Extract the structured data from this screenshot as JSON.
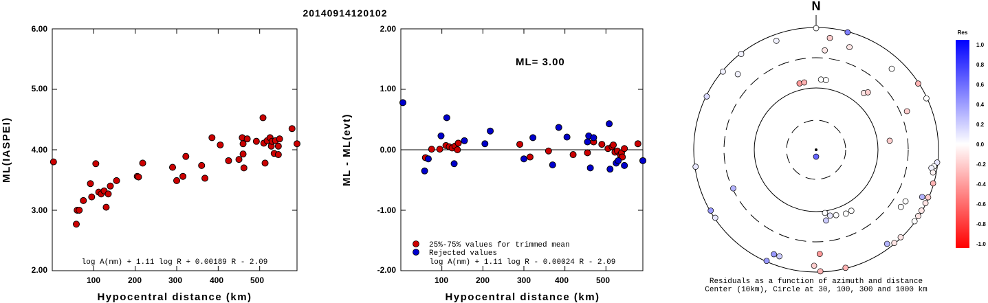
{
  "title": "20140914120102",
  "colors": {
    "accepted": "#cc0000",
    "rejected": "#0000cc",
    "edge": "#000000"
  },
  "chart_data": [
    {
      "type": "scatter",
      "name": "magnitude-vs-distance",
      "xlabel": "Hypocentral distance (km)",
      "ylabel": "ML(IASPEI)",
      "xlim": [
        0,
        590
      ],
      "ylim": [
        2.0,
        6.0
      ],
      "xticks": [
        "100",
        "200",
        "300",
        "400",
        "500"
      ],
      "yticks": [
        "2.00",
        "3.00",
        "4.00",
        "5.00",
        "6.00"
      ],
      "formula": "log A(nm) + 1.11 log R + 0.00189 R - 2.09",
      "points": [
        [
          3,
          3.8
        ],
        [
          58,
          2.77
        ],
        [
          60,
          3.0
        ],
        [
          65,
          3.0
        ],
        [
          75,
          3.16
        ],
        [
          92,
          3.44
        ],
        [
          95,
          3.22
        ],
        [
          105,
          3.77
        ],
        [
          112,
          3.3
        ],
        [
          118,
          3.27
        ],
        [
          125,
          3.32
        ],
        [
          130,
          3.05
        ],
        [
          135,
          3.27
        ],
        [
          140,
          3.4
        ],
        [
          155,
          3.49
        ],
        [
          205,
          3.56
        ],
        [
          208,
          3.55
        ],
        [
          218,
          3.78
        ],
        [
          290,
          3.71
        ],
        [
          300,
          3.49
        ],
        [
          315,
          3.56
        ],
        [
          322,
          3.89
        ],
        [
          360,
          3.74
        ],
        [
          368,
          3.53
        ],
        [
          385,
          4.2
        ],
        [
          405,
          4.08
        ],
        [
          425,
          3.82
        ],
        [
          450,
          3.84
        ],
        [
          458,
          4.2
        ],
        [
          460,
          4.1
        ],
        [
          460,
          3.93
        ],
        [
          462,
          3.7
        ],
        [
          470,
          4.18
        ],
        [
          492,
          4.14
        ],
        [
          508,
          4.53
        ],
        [
          510,
          4.11
        ],
        [
          513,
          3.78
        ],
        [
          518,
          4.15
        ],
        [
          525,
          4.2
        ],
        [
          528,
          4.06
        ],
        [
          530,
          4.14
        ],
        [
          535,
          3.94
        ],
        [
          538,
          4.15
        ],
        [
          545,
          4.06
        ],
        [
          545,
          3.92
        ],
        [
          548,
          4.18
        ],
        [
          578,
          4.35
        ],
        [
          590,
          4.1
        ]
      ]
    },
    {
      "type": "scatter",
      "name": "residual-vs-distance",
      "xlabel": "Hypocentral distance (km)",
      "ylabel": "ML - ML(evt)",
      "xlim": [
        0,
        590
      ],
      "ylim": [
        -2.0,
        2.0
      ],
      "xticks": [
        "100",
        "200",
        "300",
        "400",
        "500"
      ],
      "yticks": [
        "-2.00",
        "-1.00",
        "0.00",
        "1.00",
        "2.00"
      ],
      "annotation": "ML= 3.00",
      "formula": "log A(nm) + 1.11 log R - 0.00024 R - 2.09",
      "legend": {
        "position": "bottom-left",
        "entries": [
          {
            "label": "25%-75% values for trimmed mean",
            "series": "accepted"
          },
          {
            "label": "Rejected values",
            "series": "rejected"
          }
        ]
      },
      "series": [
        {
          "id": "accepted",
          "points": [
            [
              60,
              -0.13
            ],
            [
              75,
              0.01
            ],
            [
              95,
              0.01
            ],
            [
              110,
              0.07
            ],
            [
              118,
              0.05
            ],
            [
              125,
              0.03
            ],
            [
              132,
              0.06
            ],
            [
              138,
              0.0
            ],
            [
              140,
              0.11
            ],
            [
              290,
              0.09
            ],
            [
              315,
              -0.12
            ],
            [
              360,
              -0.02
            ],
            [
              420,
              -0.08
            ],
            [
              455,
              -0.05
            ],
            [
              470,
              0.13
            ],
            [
              490,
              0.09
            ],
            [
              505,
              0.02
            ],
            [
              515,
              0.05
            ],
            [
              518,
              0.08
            ],
            [
              522,
              -0.04
            ],
            [
              528,
              -0.02
            ],
            [
              535,
              -0.08
            ],
            [
              538,
              -0.05
            ],
            [
              540,
              -0.12
            ],
            [
              545,
              0.02
            ],
            [
              578,
              0.1
            ]
          ]
        },
        {
          "id": "rejected",
          "points": [
            [
              5,
              0.78
            ],
            [
              58,
              -0.35
            ],
            [
              67,
              -0.15
            ],
            [
              98,
              0.23
            ],
            [
              112,
              0.53
            ],
            [
              130,
              -0.23
            ],
            [
              155,
              0.15
            ],
            [
              205,
              0.1
            ],
            [
              218,
              0.31
            ],
            [
              300,
              -0.15
            ],
            [
              322,
              0.2
            ],
            [
              370,
              -0.25
            ],
            [
              385,
              0.37
            ],
            [
              405,
              0.21
            ],
            [
              455,
              0.13
            ],
            [
              458,
              0.23
            ],
            [
              462,
              -0.3
            ],
            [
              470,
              0.2
            ],
            [
              508,
              0.43
            ],
            [
              510,
              -0.32
            ],
            [
              525,
              -0.22
            ],
            [
              530,
              -0.18
            ],
            [
              545,
              -0.26
            ],
            [
              590,
              -0.18
            ]
          ]
        }
      ]
    },
    {
      "type": "polar-scatter",
      "name": "residuals-by-azimuth",
      "north_label": "N",
      "caption_line1": "Residuals as a function of azimuth and distance",
      "caption_line2": "Center (10km), Circle at 30, 100, 300 and 1000 km",
      "rings_km": [
        30,
        100,
        300,
        1000
      ],
      "center_marker": {
        "residual": 0.6
      },
      "colorbar": {
        "title": "Res",
        "min": -1.0,
        "max": 1.0,
        "labels": [
          "1.0",
          "0.8",
          "0.6",
          "0.4",
          "0.2",
          "0.0",
          "-0.2",
          "-0.4",
          "-0.6",
          "-0.8",
          "-1.0"
        ]
      },
      "points": [
        {
          "az": 0,
          "dist": 1000,
          "res": 0.0
        },
        {
          "az": 7,
          "dist": 700,
          "res": -0.2
        },
        {
          "az": 15,
          "dist": 1000,
          "res": 0.5
        },
        {
          "az": 5,
          "dist": 420,
          "res": -0.1
        },
        {
          "az": 18,
          "dist": 580,
          "res": -0.1
        },
        {
          "az": 322,
          "dist": 1000,
          "res": 0.05
        },
        {
          "az": 340,
          "dist": 800,
          "res": 0.05
        },
        {
          "az": 310,
          "dist": 1000,
          "res": 0.05
        },
        {
          "az": 296,
          "dist": 1000,
          "res": 0.15
        },
        {
          "az": 314,
          "dist": 600,
          "res": 0.05
        },
        {
          "az": 346,
          "dist": 130,
          "res": -0.4
        },
        {
          "az": 350,
          "dist": 130,
          "res": -0.3
        },
        {
          "az": 4,
          "dist": 140,
          "res": 0.0
        },
        {
          "az": 8,
          "dist": 140,
          "res": 0.0
        },
        {
          "az": 40,
          "dist": 160,
          "res": -0.1
        },
        {
          "az": 42,
          "dist": 180,
          "res": -0.2
        },
        {
          "az": 43,
          "dist": 650,
          "res": 0.0
        },
        {
          "az": 57,
          "dist": 1000,
          "res": -0.3
        },
        {
          "az": 65,
          "dist": 1000,
          "res": 0.0
        },
        {
          "az": 67,
          "dist": 400,
          "res": -0.2
        },
        {
          "az": 83,
          "dist": 160,
          "res": -0.2
        },
        {
          "az": 262,
          "dist": 1000,
          "res": 0.1
        },
        {
          "az": 245,
          "dist": 300,
          "res": 0.3
        },
        {
          "az": 96,
          "dist": 1000,
          "res": 0.1
        },
        {
          "az": 98,
          "dist": 900,
          "res": 0.0
        },
        {
          "az": 99,
          "dist": 820,
          "res": 0.05
        },
        {
          "az": 101,
          "dist": 900,
          "res": -0.05
        },
        {
          "az": 106,
          "dist": 1000,
          "res": -0.3
        },
        {
          "az": 113,
          "dist": 1000,
          "res": -0.2
        },
        {
          "az": 116,
          "dist": 1000,
          "res": -0.1
        },
        {
          "az": 120,
          "dist": 1000,
          "res": -0.1
        },
        {
          "az": 123,
          "dist": 1000,
          "res": -0.1
        },
        {
          "az": 114,
          "dist": 800,
          "res": 0.3
        },
        {
          "az": 126,
          "dist": 1000,
          "res": 0.0
        },
        {
          "az": 120,
          "dist": 480,
          "res": 0.0
        },
        {
          "az": 124,
          "dist": 460,
          "res": 0.0
        },
        {
          "az": 136,
          "dist": 1000,
          "res": -0.1
        },
        {
          "az": 140,
          "dist": 1000,
          "res": -0.1
        },
        {
          "az": 143,
          "dist": 860,
          "res": 0.3
        },
        {
          "az": 150,
          "dist": 140,
          "res": 0.0
        },
        {
          "az": 155,
          "dist": 140,
          "res": 0.0
        },
        {
          "az": 163,
          "dist": 130,
          "res": 0.0
        },
        {
          "az": 168,
          "dist": 125,
          "res": 0.1
        },
        {
          "az": 172,
          "dist": 145,
          "res": 0.2
        },
        {
          "az": 172,
          "dist": 110,
          "res": 0.0
        },
        {
          "az": 166,
          "dist": 1000,
          "res": -0.3
        },
        {
          "az": 178,
          "dist": 1000,
          "res": -0.3
        },
        {
          "az": 178,
          "dist": 500,
          "res": -0.4
        },
        {
          "az": 181,
          "dist": 800,
          "res": -0.2
        },
        {
          "az": 199,
          "dist": 700,
          "res": 0.2
        },
        {
          "az": 202,
          "dist": 700,
          "res": 0.4
        },
        {
          "az": 204,
          "dist": 1000,
          "res": 0.4
        },
        {
          "az": 236,
          "dist": 1000,
          "res": 0.1
        },
        {
          "az": 240,
          "dist": 1000,
          "res": 0.4
        }
      ]
    }
  ]
}
